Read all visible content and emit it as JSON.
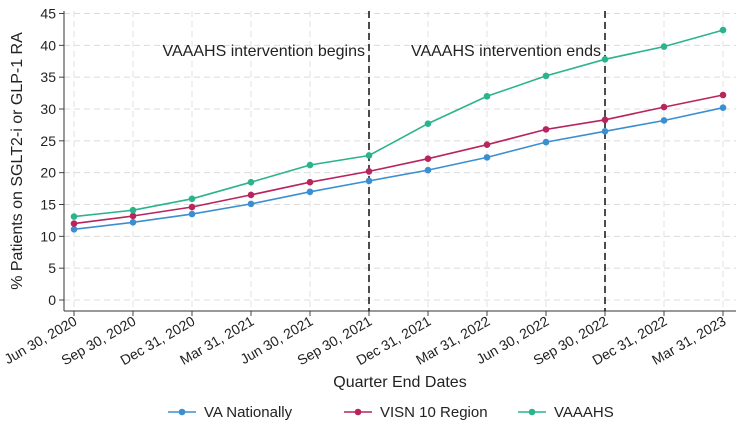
{
  "chart_data": {
    "type": "line",
    "title": "",
    "xlabel": "Quarter End Dates",
    "ylabel": "% Patients on SGLT2-i or GLP-1 RA",
    "categories": [
      "Jun 30, 2020",
      "Sep 30, 2020",
      "Dec 31, 2020",
      "Mar 31, 2021",
      "Jun 30, 2021",
      "Sep 30, 2021",
      "Dec 31, 2021",
      "Mar 31, 2022",
      "Jun 30, 2022",
      "Sep 30, 2022",
      "Dec 31, 2022",
      "Mar 31, 2023"
    ],
    "ylim": [
      0,
      45
    ],
    "yticks": [
      0,
      5,
      10,
      15,
      20,
      25,
      30,
      35,
      40,
      45
    ],
    "grid": true,
    "legend_position": "bottom",
    "series": [
      {
        "name": "VA Nationally",
        "color": "#3b8fd1",
        "values": [
          11.1,
          12.2,
          13.5,
          15.1,
          17.0,
          18.7,
          20.4,
          22.4,
          24.8,
          26.5,
          28.2,
          30.2
        ]
      },
      {
        "name": "VISN 10 Region",
        "color": "#b8245e",
        "values": [
          12.0,
          13.2,
          14.6,
          16.5,
          18.5,
          20.2,
          22.2,
          24.4,
          26.8,
          28.3,
          30.3,
          32.2
        ]
      },
      {
        "name": "VAAAHS",
        "color": "#2bb38d",
        "values": [
          13.1,
          14.1,
          15.9,
          18.5,
          21.2,
          22.7,
          27.7,
          32.0,
          35.2,
          37.8,
          39.8,
          42.4
        ]
      }
    ],
    "annotations": [
      {
        "text": "VAAAHS intervention begins",
        "x_category_index": 5,
        "position": "left-of-line"
      },
      {
        "text": "VAAAHS intervention ends",
        "x_category_index": 9,
        "position": "left-of-line"
      }
    ]
  }
}
